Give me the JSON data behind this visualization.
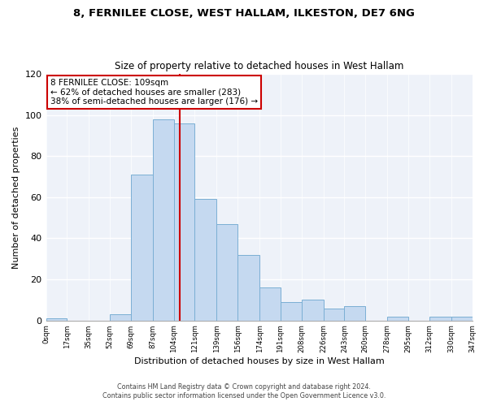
{
  "title1": "8, FERNILEE CLOSE, WEST HALLAM, ILKESTON, DE7 6NG",
  "title2": "Size of property relative to detached houses in West Hallam",
  "xlabel": "Distribution of detached houses by size in West Hallam",
  "ylabel": "Number of detached properties",
  "bar_color": "#c5d9f0",
  "bar_edge_color": "#7bafd4",
  "background_color": "#eef2f9",
  "bin_edges": [
    0,
    17,
    35,
    52,
    69,
    87,
    104,
    121,
    139,
    156,
    174,
    191,
    208,
    226,
    243,
    260,
    278,
    295,
    312,
    330,
    347
  ],
  "bin_labels": [
    "0sqm",
    "17sqm",
    "35sqm",
    "52sqm",
    "69sqm",
    "87sqm",
    "104sqm",
    "121sqm",
    "139sqm",
    "156sqm",
    "174sqm",
    "191sqm",
    "208sqm",
    "226sqm",
    "243sqm",
    "260sqm",
    "278sqm",
    "295sqm",
    "312sqm",
    "330sqm",
    "347sqm"
  ],
  "counts": [
    1,
    0,
    0,
    3,
    71,
    98,
    96,
    59,
    47,
    32,
    16,
    9,
    10,
    6,
    7,
    0,
    2,
    0,
    2,
    2
  ],
  "ylim": [
    0,
    120
  ],
  "yticks": [
    0,
    20,
    40,
    60,
    80,
    100,
    120
  ],
  "property_value": 109,
  "vline_color": "#cc0000",
  "annotation_box_color": "#cc0000",
  "annotation_text_line1": "8 FERNILEE CLOSE: 109sqm",
  "annotation_text_line2": "← 62% of detached houses are smaller (283)",
  "annotation_text_line3": "38% of semi-detached houses are larger (176) →",
  "footer1": "Contains HM Land Registry data © Crown copyright and database right 2024.",
  "footer2": "Contains public sector information licensed under the Open Government Licence v3.0."
}
